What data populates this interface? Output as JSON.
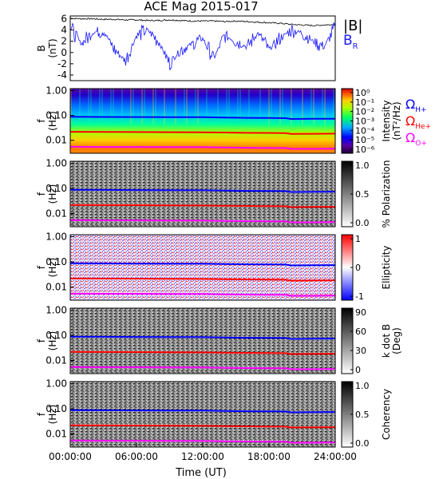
{
  "title": "ACE Mag 2015-017",
  "xlabel": "Time (UT)",
  "x_ticks": [
    "00:00:00",
    "06:00:00",
    "12:00:00",
    "18:00:00",
    "24:00:00"
  ],
  "legends": {
    "absB": "|B|",
    "BR": "B",
    "BR_sub": "R",
    "omega": "Ω",
    "Hplus": "H+",
    "Heplus": "He+",
    "Oplus": "O+"
  },
  "colors": {
    "absB": "#000000",
    "BR": "#1a1aff",
    "Hplus": "#0000ff",
    "Heplus": "#ff0000",
    "Oplus": "#ff00ff"
  },
  "chart_data": [
    {
      "type": "line",
      "ylabel": "B (nT)",
      "ylabel_top": "B",
      "ylabel_bot": "(nT)",
      "ylim": [
        -5,
        6.5
      ],
      "y_ticks": [
        "6",
        "4",
        "2",
        "0",
        "-2",
        "-4"
      ],
      "y_tick_values": [
        6,
        4,
        2,
        0,
        -2,
        -4
      ],
      "xlim_hours": [
        0,
        24
      ],
      "series": [
        {
          "name": "|B|",
          "x_hours": [
            0,
            1,
            2,
            3,
            4,
            5,
            6,
            7,
            8,
            9,
            10,
            11,
            12,
            13,
            14,
            15,
            16,
            17,
            18,
            19,
            20,
            21,
            22,
            23,
            24
          ],
          "values": [
            6.1,
            6.0,
            6.0,
            5.9,
            5.9,
            5.8,
            5.8,
            5.7,
            5.7,
            5.8,
            5.7,
            5.6,
            5.6,
            5.6,
            5.5,
            5.6,
            5.5,
            5.4,
            5.3,
            5.2,
            5.0,
            4.9,
            4.8,
            4.9,
            5.0
          ]
        },
        {
          "name": "B_R",
          "x_hours": [
            0,
            1,
            2,
            3,
            4,
            5,
            6,
            7,
            8,
            9,
            10,
            11,
            12,
            13,
            14,
            15,
            16,
            17,
            18,
            19,
            20,
            21,
            22,
            23,
            24
          ],
          "values": [
            4.5,
            1.5,
            3.5,
            4.0,
            0.5,
            -1.5,
            3.0,
            4.0,
            2.0,
            -2.0,
            0.5,
            1.5,
            2.5,
            -1.0,
            3.0,
            2.0,
            1.0,
            3.5,
            0.5,
            2.5,
            4.0,
            3.5,
            2.0,
            1.0,
            4.5
          ]
        }
      ]
    },
    {
      "type": "heatmap",
      "ylabel": "f (Hz)",
      "ylabel_top": "f",
      "ylabel_bot": "(Hz)",
      "ylog": true,
      "ylim": [
        0.003,
        1.2
      ],
      "y_ticks": [
        "1.00",
        "0.10",
        "0.01"
      ],
      "y_tick_values": [
        1.0,
        0.1,
        0.01
      ],
      "colorbar_label_top": "Intensity",
      "colorbar_label_bot": "(nT²/Hz)",
      "colorbar_ticks": [
        "10⁰",
        "10⁻¹",
        "10⁻²",
        "10⁻³",
        "10⁻⁴",
        "10⁻⁵",
        "10⁻⁶"
      ],
      "colorscale": "rainbow",
      "note": "power spectral density; high at low frequency, decreasing to ~10^-6 near 1 Hz"
    },
    {
      "type": "heatmap",
      "ylabel_top": "f",
      "ylabel_bot": "(Hz)",
      "ylog": true,
      "y_ticks": [
        "1.00",
        "0.10",
        "0.01"
      ],
      "y_tick_values": [
        1.0,
        0.1,
        0.01
      ],
      "colorbar_label_top": "% Polarization",
      "colorbar_ticks": [
        "1.0",
        "0.5",
        "0.0"
      ],
      "colorscale": "grayscale"
    },
    {
      "type": "heatmap",
      "ylabel_top": "f",
      "ylabel_bot": "(Hz)",
      "ylog": true,
      "y_ticks": [
        "1.00",
        "0.10",
        "0.01"
      ],
      "y_tick_values": [
        1.0,
        0.1,
        0.01
      ],
      "colorbar_label_top": "Ellipticity",
      "colorbar_ticks": [
        "1",
        "0",
        "-1"
      ],
      "colorscale": "blue-white-red"
    },
    {
      "type": "heatmap",
      "ylabel_top": "f",
      "ylabel_bot": "(Hz)",
      "ylog": true,
      "y_ticks": [
        "1.00",
        "0.10",
        "0.01"
      ],
      "y_tick_values": [
        1.0,
        0.1,
        0.01
      ],
      "colorbar_label_top": "k dot B",
      "colorbar_label_bot": "(Deg)",
      "colorbar_ticks": [
        "90",
        "60",
        "30",
        "0"
      ],
      "colorscale": "grayscale"
    },
    {
      "type": "heatmap",
      "ylabel_top": "f",
      "ylabel_bot": "(Hz)",
      "ylog": true,
      "y_ticks": [
        "1.00",
        "0.10",
        "0.01"
      ],
      "y_tick_values": [
        1.0,
        0.1,
        0.01
      ],
      "colorbar_label_top": "Coherency",
      "colorbar_ticks": [
        "1.0",
        "0.5",
        "0.0"
      ],
      "colorscale": "grayscale"
    }
  ],
  "gyrofrequency_lines": {
    "x_hours": [
      0,
      3,
      6,
      9,
      12,
      14,
      16,
      18,
      19.5,
      20,
      22,
      24
    ],
    "H+": [
      0.088,
      0.087,
      0.086,
      0.085,
      0.085,
      0.082,
      0.08,
      0.079,
      0.078,
      0.072,
      0.073,
      0.074
    ],
    "He+": [
      0.022,
      0.0218,
      0.0215,
      0.0212,
      0.021,
      0.0205,
      0.02,
      0.0198,
      0.0195,
      0.018,
      0.0182,
      0.0185
    ],
    "O+": [
      0.0055,
      0.0054,
      0.0054,
      0.0053,
      0.0053,
      0.0051,
      0.005,
      0.0049,
      0.0049,
      0.0045,
      0.0045,
      0.0046
    ]
  }
}
